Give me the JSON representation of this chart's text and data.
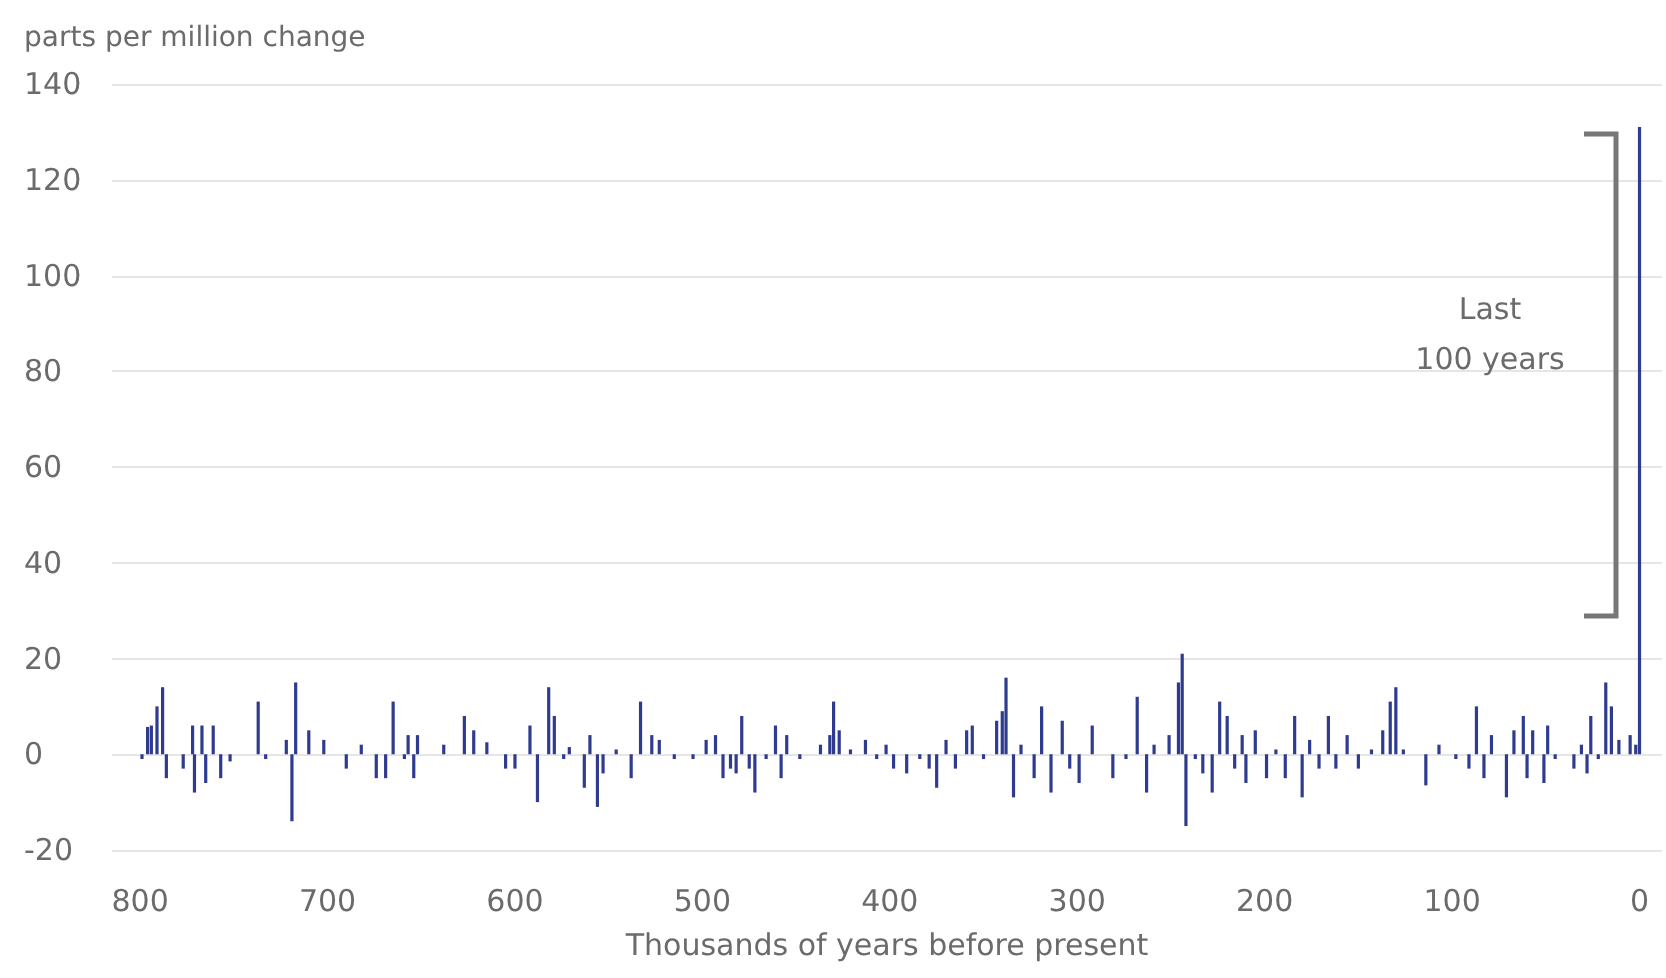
{
  "chart_data": {
    "type": "bar",
    "ylabel": "parts per million change",
    "xlabel": "Thousands of years before present",
    "x": [
      799,
      796,
      794,
      791,
      788,
      786,
      777,
      772,
      771,
      767,
      765,
      761,
      757,
      752,
      737,
      733,
      722,
      719,
      717,
      710,
      702,
      690,
      682,
      674,
      669,
      665,
      659,
      657,
      654,
      652,
      638,
      627,
      622,
      615,
      605,
      600,
      592,
      588,
      582,
      579,
      574,
      571,
      563,
      560,
      556,
      553,
      546,
      538,
      533,
      527,
      523,
      515,
      505,
      498,
      493,
      489,
      485,
      482,
      479,
      475,
      472,
      466,
      461,
      458,
      455,
      448,
      437,
      432,
      430,
      427,
      421,
      413,
      407,
      402,
      398,
      391,
      384,
      379,
      375,
      370,
      365,
      359,
      356,
      350,
      343,
      340,
      338,
      334,
      330,
      323,
      319,
      314,
      308,
      304,
      299,
      292,
      281,
      274,
      268,
      263,
      259,
      251,
      246,
      244,
      242,
      237,
      233,
      228,
      224,
      220,
      216,
      212,
      210,
      205,
      199,
      194,
      189,
      184,
      180,
      176,
      171,
      166,
      162,
      156,
      150,
      143,
      137,
      133,
      130,
      126,
      114,
      107,
      98,
      91,
      87,
      83,
      79,
      71,
      67,
      62,
      60,
      57,
      51,
      49,
      45,
      35,
      31,
      28,
      26,
      22,
      18,
      15,
      11,
      5,
      2,
      0
    ],
    "values": [
      -1,
      5.7,
      6,
      10,
      14,
      -5,
      -3,
      6,
      -8,
      6,
      -6,
      6,
      -5,
      -1.5,
      11,
      -1,
      3,
      -14,
      15,
      5,
      3,
      -3,
      2,
      -5,
      -5,
      11,
      -1,
      4,
      -5,
      4,
      2,
      8,
      5,
      2.5,
      -3,
      -3,
      6,
      -10,
      14,
      8,
      -1,
      1.5,
      -7,
      4,
      -11,
      -4,
      1,
      -5,
      11,
      4,
      3,
      -1,
      -1,
      3,
      4,
      -5,
      -3,
      -4,
      8,
      -3,
      -8,
      -1,
      6,
      -5,
      4,
      -1,
      2,
      4,
      11,
      5,
      1,
      3,
      -1,
      2,
      -3,
      -4,
      -1,
      -3,
      -7,
      3,
      -3,
      5,
      6,
      -1,
      7,
      9,
      16,
      -9,
      2,
      -5,
      10,
      -8,
      7,
      -3,
      -6,
      6,
      -5,
      -1,
      12,
      -8,
      2,
      4,
      15,
      21,
      -15,
      -1,
      -4,
      -8,
      11,
      8,
      -3,
      4,
      -6,
      5,
      -5,
      1,
      -5,
      8,
      -9,
      3,
      -3,
      8,
      -3,
      4,
      -3,
      1,
      5,
      11,
      14,
      1,
      -6.5,
      2,
      -1,
      -3,
      10,
      -5,
      4,
      -9,
      5,
      8,
      -5,
      5,
      -6,
      6,
      -1,
      -3,
      2,
      -4,
      8,
      -1,
      15,
      10,
      3,
      4,
      2,
      131
    ],
    "color": "#2e3b8f",
    "xlim": [
      815,
      -12
    ],
    "xticks": [
      800,
      700,
      600,
      500,
      400,
      300,
      200,
      100,
      0
    ],
    "ylim": [
      -20,
      140
    ],
    "yticks": [
      -20,
      0,
      20,
      40,
      60,
      80,
      100,
      120,
      140
    ],
    "grid": "y",
    "annotations": [
      "Last 100 years"
    ]
  }
}
